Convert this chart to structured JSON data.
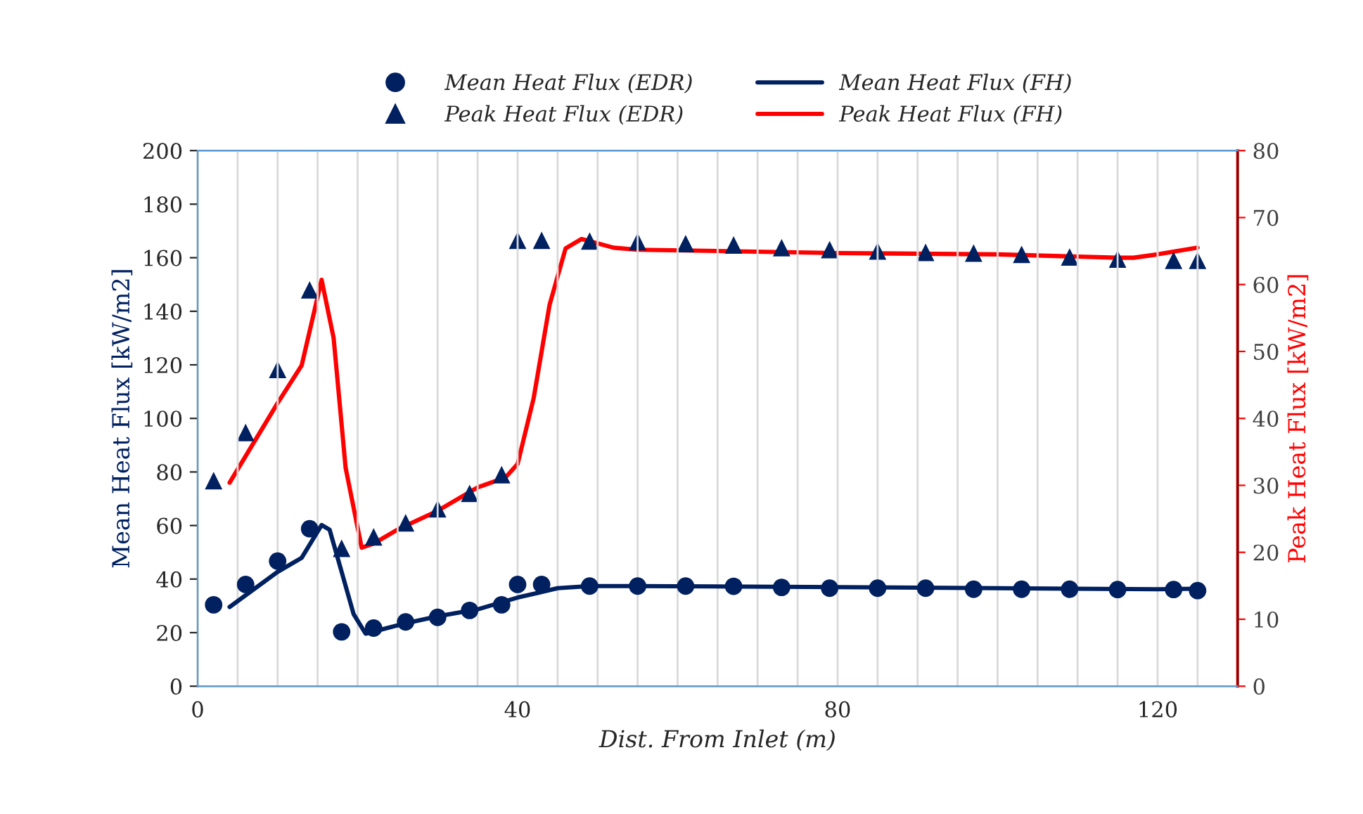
{
  "chart_data": {
    "type": "line",
    "xlabel": "Dist. From Inlet (m)",
    "ylabel": "Mean Heat Flux [kW/m2]",
    "y2label": "Peak Heat Flux [kW/m2]",
    "xlim": [
      0,
      130
    ],
    "xticks": [
      0,
      {
        "value": 5,
        "label": null
      },
      {
        "value": 10,
        "label": null
      },
      {
        "value": 15,
        "label": null
      },
      {
        "value": 20,
        "label": null
      },
      {
        "value": 25,
        "label": null
      },
      {
        "value": 30,
        "label": null
      },
      {
        "value": 35,
        "label": null
      },
      40,
      {
        "value": 45,
        "label": null
      },
      {
        "value": 50,
        "label": null
      },
      {
        "value": 55,
        "label": null
      },
      {
        "value": 60,
        "label": null
      },
      {
        "value": 65,
        "label": null
      },
      {
        "value": 70,
        "label": null
      },
      {
        "value": 75,
        "label": null
      },
      80,
      {
        "value": 85,
        "label": null
      },
      {
        "value": 90,
        "label": null
      },
      {
        "value": 95,
        "label": null
      },
      {
        "value": 100,
        "label": null
      },
      {
        "value": 105,
        "label": null
      },
      {
        "value": 110,
        "label": null
      },
      {
        "value": 115,
        "label": null
      },
      120,
      {
        "value": 125,
        "label": null
      }
    ],
    "ylim": [
      0,
      200
    ],
    "yticks": [
      0,
      20,
      40,
      60,
      80,
      100,
      120,
      140,
      160,
      180,
      200
    ],
    "y2lim": [
      0,
      80
    ],
    "y2ticks": [
      0,
      10,
      20,
      30,
      40,
      50,
      60,
      70,
      80
    ],
    "grid": "x",
    "legend": "top",
    "series": [
      {
        "name": "Mean Heat Flux (EDR)",
        "type": "scatter",
        "marker": "circle",
        "color": "#002060",
        "x": [
          2,
          6,
          10,
          14,
          18,
          22,
          26,
          30,
          34,
          38,
          40,
          43,
          49,
          55,
          61,
          67,
          73,
          79,
          85,
          91,
          97,
          103,
          109,
          115,
          122,
          125
        ],
        "values": [
          30.4,
          38.0,
          46.7,
          58.8,
          20.3,
          21.7,
          24.0,
          25.7,
          28.3,
          30.4,
          38.0,
          38.0,
          37.4,
          37.4,
          37.4,
          37.3,
          36.9,
          36.6,
          36.6,
          36.6,
          36.2,
          36.2,
          36.2,
          36.1,
          36.1,
          35.7
        ]
      },
      {
        "name": "Mean Heat Flux (FH)",
        "marker": "none",
        "line_style": "solid",
        "color": "#002060",
        "x": [
          4,
          10,
          13,
          15.5,
          16.5,
          18,
          19.5,
          21,
          22.5,
          26,
          30,
          35,
          40,
          45,
          49,
          55,
          80,
          100,
          120,
          125
        ],
        "values": [
          29.6,
          42.7,
          47.9,
          60.2,
          58.4,
          42.7,
          26.9,
          19.6,
          20.8,
          23.5,
          26.1,
          28.7,
          33.1,
          36.6,
          37.4,
          37.4,
          37.0,
          36.6,
          36.2,
          36.4
        ]
      },
      {
        "name": "Peak Heat Flux (EDR)",
        "type": "scatter",
        "axis": "y2",
        "marker": "triangle",
        "color": "#002060",
        "x": [
          2,
          6,
          10,
          14,
          18,
          22,
          26,
          30,
          34,
          38,
          40,
          43,
          49,
          55,
          61,
          67,
          73,
          79,
          85,
          91,
          97,
          103,
          109,
          115,
          122,
          125
        ],
        "values": [
          30.7,
          37.9,
          47.3,
          59.2,
          20.6,
          22.3,
          24.4,
          26.5,
          28.8,
          31.6,
          66.6,
          66.6,
          66.5,
          66.4,
          66.1,
          65.9,
          65.5,
          65.2,
          65.0,
          64.8,
          64.7,
          64.5,
          64.1,
          63.8,
          63.6,
          63.6
        ]
      },
      {
        "name": "Peak Heat Flux (FH)",
        "axis": "y2",
        "marker": "none",
        "line_style": "solid",
        "color": "#ff0000",
        "x": [
          4,
          10,
          13,
          15.5,
          17,
          18.5,
          20.5,
          22,
          25,
          30,
          35,
          38.5,
          40,
          42,
          44,
          46,
          48,
          52,
          55,
          80,
          100,
          115,
          117,
          120,
          125
        ],
        "values": [
          30.4,
          42.3,
          47.9,
          60.7,
          52.0,
          32.6,
          20.7,
          21.3,
          23.4,
          26.2,
          29.7,
          31.2,
          33.2,
          43.0,
          57.0,
          65.4,
          66.8,
          65.5,
          65.2,
          64.7,
          64.5,
          64.0,
          64.0,
          64.5,
          65.5
        ]
      }
    ]
  }
}
